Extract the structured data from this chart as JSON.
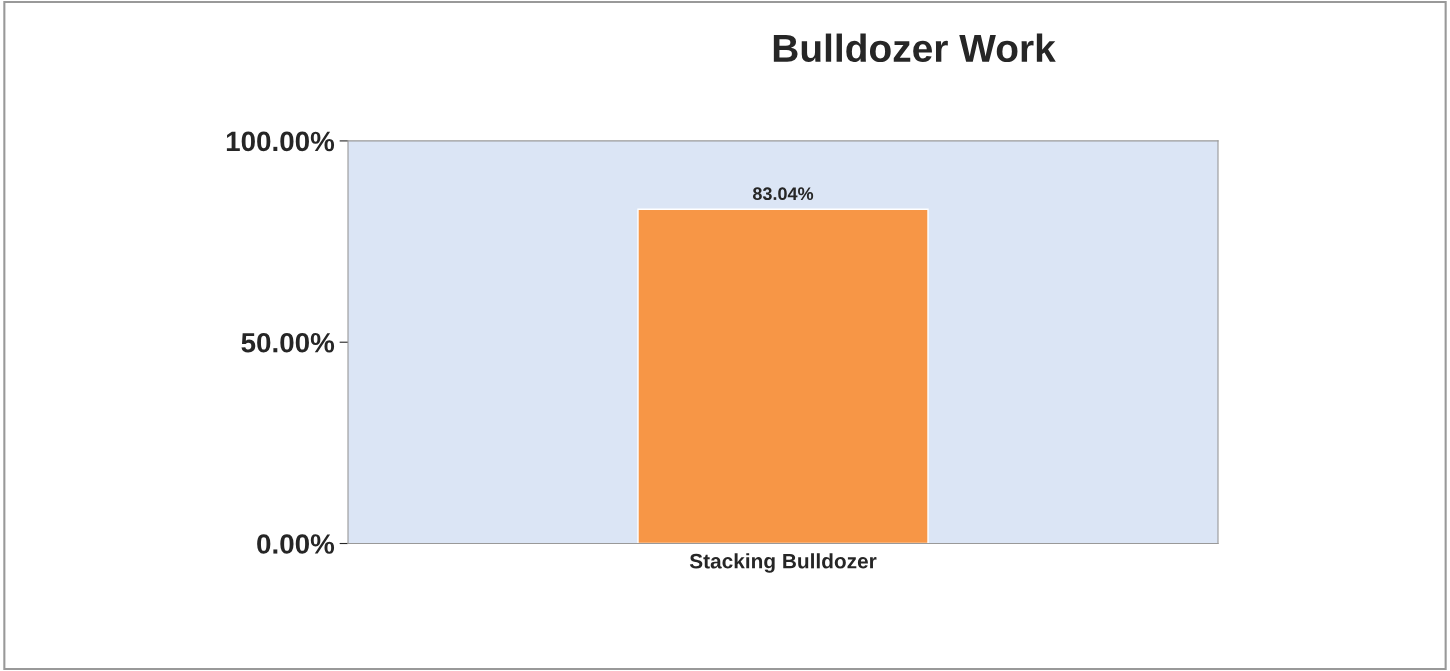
{
  "chart_data": {
    "type": "bar",
    "title": "Bulldozer Work",
    "categories": [
      "Stacking Bulldozer"
    ],
    "series": [
      {
        "color": "#f79646",
        "values": [
          83.04
        ]
      }
    ],
    "value_labels": [
      "83.04%"
    ],
    "ylim": [
      0,
      100
    ],
    "yticks": [
      {
        "value": 0,
        "label": "0.00%"
      },
      {
        "value": 50,
        "label": "50.00%"
      },
      {
        "value": 100,
        "label": "100.00%"
      }
    ]
  }
}
